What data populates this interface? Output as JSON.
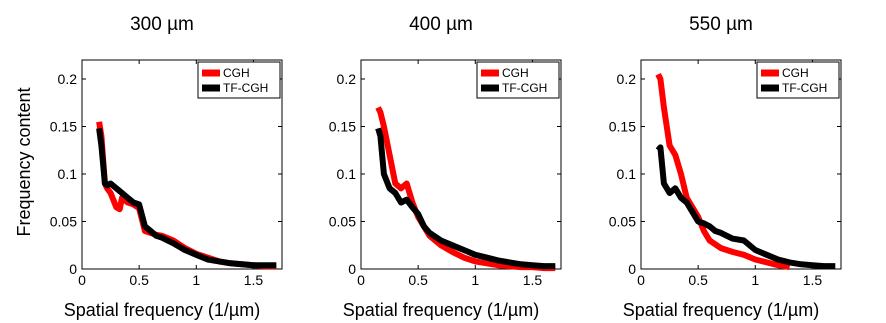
{
  "figure": {
    "ylabel": "Frequency content",
    "xlabel": "Spatial frequency  (1/µm)"
  },
  "chart_data": [
    {
      "type": "line",
      "title": "300 µm",
      "xlabel": "Spatial frequency  (1/µm)",
      "ylabel": "Frequency content",
      "xlim": [
        0,
        1.75
      ],
      "ylim": [
        0,
        0.22
      ],
      "xticks": [
        "0",
        "0.5",
        "1",
        "1.5"
      ],
      "yticks": [
        "0",
        "0.05",
        "0.1",
        "0.15",
        "0.2"
      ],
      "legend": "top-right",
      "series": [
        {
          "name": "CGH",
          "color": "#ff0000",
          "x": [
            0.15,
            0.17,
            0.2,
            0.22,
            0.25,
            0.3,
            0.33,
            0.35,
            0.38,
            0.4,
            0.45,
            0.5,
            0.55,
            0.6,
            0.65,
            0.7,
            0.8,
            0.9,
            1.0,
            1.1,
            1.2,
            1.3,
            1.4,
            1.5,
            1.6,
            1.7
          ],
          "y": [
            0.155,
            0.14,
            0.09,
            0.085,
            0.08,
            0.065,
            0.063,
            0.075,
            0.072,
            0.07,
            0.068,
            0.064,
            0.04,
            0.038,
            0.036,
            0.035,
            0.03,
            0.022,
            0.016,
            0.012,
            0.008,
            0.006,
            0.005,
            0.004,
            0.003,
            0.003
          ]
        },
        {
          "name": "TF-CGH",
          "color": "#000000",
          "x": [
            0.15,
            0.17,
            0.2,
            0.22,
            0.25,
            0.3,
            0.35,
            0.4,
            0.45,
            0.5,
            0.55,
            0.6,
            0.65,
            0.7,
            0.8,
            0.9,
            1.0,
            1.1,
            1.2,
            1.3,
            1.4,
            1.5,
            1.6,
            1.7
          ],
          "y": [
            0.148,
            0.13,
            0.09,
            0.088,
            0.09,
            0.085,
            0.08,
            0.075,
            0.07,
            0.068,
            0.045,
            0.04,
            0.035,
            0.033,
            0.027,
            0.02,
            0.015,
            0.01,
            0.008,
            0.006,
            0.005,
            0.004,
            0.004,
            0.004
          ]
        }
      ]
    },
    {
      "type": "line",
      "title": "400 µm",
      "xlabel": "Spatial frequency  (1/µm)",
      "xlim": [
        0,
        1.75
      ],
      "ylim": [
        0,
        0.22
      ],
      "xticks": [
        "0",
        "0.5",
        "1",
        "1.5"
      ],
      "yticks": [
        "0",
        "0.05",
        "0.1",
        "0.15",
        "0.2"
      ],
      "legend": "top-right",
      "series": [
        {
          "name": "CGH",
          "color": "#ff0000",
          "x": [
            0.15,
            0.17,
            0.2,
            0.25,
            0.3,
            0.35,
            0.4,
            0.45,
            0.5,
            0.55,
            0.6,
            0.7,
            0.8,
            0.9,
            1.0,
            1.1,
            1.2,
            1.3,
            1.4,
            1.5,
            1.6,
            1.7
          ],
          "y": [
            0.17,
            0.165,
            0.15,
            0.12,
            0.09,
            0.085,
            0.09,
            0.07,
            0.055,
            0.045,
            0.035,
            0.025,
            0.018,
            0.012,
            0.008,
            0.006,
            0.004,
            0.003,
            0.002,
            0.002,
            0.001,
            0.001
          ]
        },
        {
          "name": "TF-CGH",
          "color": "#000000",
          "x": [
            0.15,
            0.17,
            0.2,
            0.25,
            0.3,
            0.35,
            0.4,
            0.45,
            0.5,
            0.55,
            0.6,
            0.7,
            0.8,
            0.9,
            1.0,
            1.1,
            1.2,
            1.3,
            1.4,
            1.5,
            1.6,
            1.7
          ],
          "y": [
            0.148,
            0.14,
            0.1,
            0.085,
            0.08,
            0.07,
            0.073,
            0.065,
            0.058,
            0.045,
            0.038,
            0.03,
            0.025,
            0.02,
            0.015,
            0.012,
            0.009,
            0.007,
            0.005,
            0.004,
            0.003,
            0.003
          ]
        }
      ]
    },
    {
      "type": "line",
      "title": "550 µm",
      "xlabel": "Spatial frequency  (1/µm)",
      "xlim": [
        0,
        1.75
      ],
      "ylim": [
        0,
        0.22
      ],
      "xticks": [
        "0",
        "0.5",
        "1",
        "1.5"
      ],
      "yticks": [
        "0",
        "0.05",
        "0.1",
        "0.15",
        "0.2"
      ],
      "legend": "top-right",
      "series": [
        {
          "name": "CGH",
          "color": "#ff0000",
          "x": [
            0.15,
            0.17,
            0.2,
            0.25,
            0.3,
            0.35,
            0.4,
            0.45,
            0.5,
            0.55,
            0.6,
            0.7,
            0.8,
            0.9,
            1.0,
            1.1,
            1.2,
            1.3
          ],
          "y": [
            0.205,
            0.2,
            0.17,
            0.13,
            0.12,
            0.1,
            0.075,
            0.065,
            0.055,
            0.04,
            0.03,
            0.022,
            0.018,
            0.015,
            0.01,
            0.007,
            0.004,
            0.002
          ]
        },
        {
          "name": "TF-CGH",
          "color": "#000000",
          "x": [
            0.15,
            0.17,
            0.2,
            0.25,
            0.3,
            0.35,
            0.4,
            0.45,
            0.5,
            0.55,
            0.6,
            0.65,
            0.7,
            0.8,
            0.9,
            1.0,
            1.1,
            1.2,
            1.3,
            1.4,
            1.5,
            1.6,
            1.7
          ],
          "y": [
            0.125,
            0.128,
            0.09,
            0.08,
            0.085,
            0.075,
            0.07,
            0.06,
            0.05,
            0.048,
            0.045,
            0.04,
            0.038,
            0.032,
            0.03,
            0.02,
            0.015,
            0.01,
            0.007,
            0.005,
            0.004,
            0.003,
            0.003
          ]
        }
      ]
    }
  ]
}
